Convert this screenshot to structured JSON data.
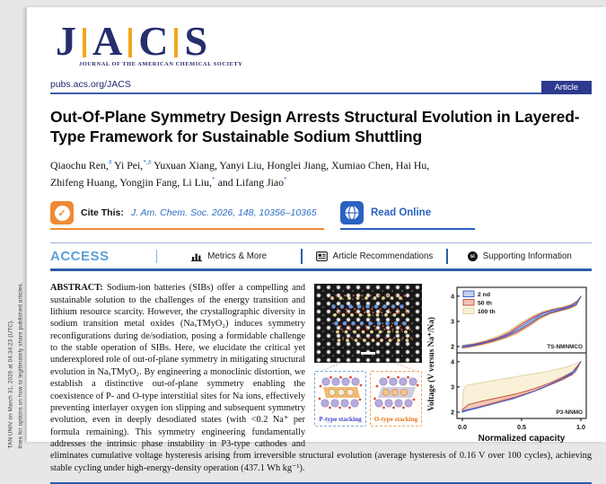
{
  "page": {
    "margin_note_line1": "TAN UNIV on March 31, 2026 at 04:34:23 (UTC).",
    "margin_note_line2": "lines for options on how to legitimately share published articles."
  },
  "header": {
    "logo_letters": [
      "J",
      "A",
      "C",
      "S"
    ],
    "logo_subtitle": "JOURNAL OF THE AMERICAN CHEMICAL SOCIETY",
    "site_url": "pubs.acs.org/JACS",
    "badge": "Article"
  },
  "article": {
    "title": "Out-Of-Plane Symmetry Design Arrests Structural Evolution in Layered-Type Framework for Sustainable Sodium Shuttling",
    "authors": [
      {
        "name": "Qiaochu Ren,",
        "mark": "#"
      },
      {
        "name": " Yi Pei,",
        "mark": "*,#"
      },
      {
        "name": " Yuxuan Xiang,",
        "mark": ""
      },
      {
        "name": " Yanyi Liu,",
        "mark": ""
      },
      {
        "name": " Honglei Jiang,",
        "mark": ""
      },
      {
        "name": " Xumiao Chen,",
        "mark": ""
      },
      {
        "name": " Hai Hu,",
        "mark": ""
      },
      {
        "name": " Zhifeng Huang,",
        "mark": ""
      },
      {
        "name": " Yongjin Fang,",
        "mark": ""
      },
      {
        "name": " Li Liu,",
        "mark": "*"
      },
      {
        "name": " and Lifang Jiao",
        "mark": "*"
      }
    ]
  },
  "cite_bar": {
    "cite_label": "Cite This:",
    "citation": "J. Am. Chem. Soc. 2026, 148, 10356–10365",
    "read_online_label": "Read Online"
  },
  "access_bar": {
    "access": "ACCESS",
    "metrics": "Metrics & More",
    "recommendations": "Article Recommendations",
    "supporting": "Supporting Information",
    "si_icon_text": "si"
  },
  "abstract": {
    "label": "ABSTRACT:",
    "column_text": "Sodium-ion batteries (SIBs) offer a compelling and sustainable solution to the challenges of the energy transition and lithium resource scarcity. However, the crystallographic diversity in sodium transition metal oxides (NaₓTMyO₂) induces symmetry reconfigurations during de/sodiation, posing a formidable challenge to the stable operation of SIBs. Here, we elucidate the critical yet underexplored role of out-of-plane symmetry in mitigating structural evolution in NaₓTMyO₂. By engineering a monoclinic distortion, we establish a distinctive out-of-plane symmetry enabling the coexistence of P- and O-type interstitial sites for Na ions, effectively preventing interlayer oxygen ion slipping and subsequent symmetry evolution, even in deeply desodiated states (with <0.2 Na⁺ per formula remaining). This symmetry engineering",
    "full_width_text": "fundamentally addresses the intrinsic phase instability in P3-type cathodes and eliminates cumulative voltage hysteresis arising from irreversible structural evolution (average hysteresis of 0.16 V over 100 cycles), achieving stable cycling under high-energy-density operation (437.1 Wh kg⁻¹)."
  },
  "figure": {
    "p_type_label": "P-type stacking",
    "o_type_label": "O-type stacking"
  },
  "chart_data": {
    "type": "line",
    "xlabel": "Normalized capacity",
    "ylabel": "Voltage (V versus Na⁺/Na)",
    "x_ticks": [
      "0.0",
      "0.5",
      "1.0"
    ],
    "y_ticks": [
      "2",
      "3",
      "4"
    ],
    "xlim": [
      0,
      1
    ],
    "panel_ylim": [
      1.75,
      4.35
    ],
    "legend_position": "top-left",
    "series_styles": [
      {
        "name": "2 nd",
        "stroke": "#4a62c8",
        "fill": "#c4d0ee"
      },
      {
        "name": "50 th",
        "stroke": "#c8523c",
        "fill": "#f0c2b6"
      },
      {
        "name": "100 th",
        "stroke": "#e2d2a2",
        "fill": "#f9f0d4"
      }
    ],
    "panels": [
      {
        "label": "TS-NMNMCO",
        "series": [
          {
            "name": "2 nd",
            "charge": [
              [
                0,
                2.02
              ],
              [
                0.1,
                2.08
              ],
              [
                0.2,
                2.18
              ],
              [
                0.3,
                2.32
              ],
              [
                0.4,
                2.52
              ],
              [
                0.5,
                2.82
              ],
              [
                0.6,
                3.12
              ],
              [
                0.68,
                3.32
              ],
              [
                0.76,
                3.43
              ],
              [
                0.85,
                3.52
              ],
              [
                0.92,
                3.62
              ],
              [
                0.97,
                3.78
              ],
              [
                1,
                4.0
              ]
            ],
            "discharge": [
              [
                1,
                4.0
              ],
              [
                0.96,
                3.68
              ],
              [
                0.9,
                3.55
              ],
              [
                0.82,
                3.45
              ],
              [
                0.74,
                3.35
              ],
              [
                0.65,
                3.18
              ],
              [
                0.56,
                2.9
              ],
              [
                0.46,
                2.62
              ],
              [
                0.36,
                2.4
              ],
              [
                0.26,
                2.25
              ],
              [
                0.16,
                2.12
              ],
              [
                0.07,
                2.03
              ],
              [
                0,
                1.97
              ]
            ]
          },
          {
            "name": "50 th",
            "charge": [
              [
                0,
                2.03
              ],
              [
                0.1,
                2.1
              ],
              [
                0.2,
                2.21
              ],
              [
                0.3,
                2.36
              ],
              [
                0.4,
                2.58
              ],
              [
                0.5,
                2.9
              ],
              [
                0.6,
                3.18
              ],
              [
                0.68,
                3.36
              ],
              [
                0.76,
                3.46
              ],
              [
                0.85,
                3.55
              ],
              [
                0.92,
                3.65
              ],
              [
                0.97,
                3.8
              ],
              [
                1,
                3.98
              ]
            ],
            "discharge": [
              [
                1,
                3.98
              ],
              [
                0.96,
                3.65
              ],
              [
                0.9,
                3.52
              ],
              [
                0.82,
                3.42
              ],
              [
                0.74,
                3.32
              ],
              [
                0.65,
                3.13
              ],
              [
                0.56,
                2.84
              ],
              [
                0.46,
                2.56
              ],
              [
                0.36,
                2.36
              ],
              [
                0.26,
                2.21
              ],
              [
                0.16,
                2.09
              ],
              [
                0.07,
                2.0
              ],
              [
                0,
                1.95
              ]
            ]
          },
          {
            "name": "100 th",
            "charge": [
              [
                0,
                2.05
              ],
              [
                0.1,
                2.13
              ],
              [
                0.2,
                2.25
              ],
              [
                0.3,
                2.42
              ],
              [
                0.4,
                2.65
              ],
              [
                0.5,
                2.97
              ],
              [
                0.6,
                3.23
              ],
              [
                0.68,
                3.4
              ],
              [
                0.76,
                3.49
              ],
              [
                0.85,
                3.58
              ],
              [
                0.92,
                3.68
              ],
              [
                0.97,
                3.82
              ],
              [
                1,
                3.96
              ]
            ],
            "discharge": [
              [
                1,
                3.96
              ],
              [
                0.96,
                3.62
              ],
              [
                0.9,
                3.5
              ],
              [
                0.82,
                3.4
              ],
              [
                0.74,
                3.29
              ],
              [
                0.65,
                3.08
              ],
              [
                0.56,
                2.78
              ],
              [
                0.46,
                2.5
              ],
              [
                0.36,
                2.32
              ],
              [
                0.26,
                2.17
              ],
              [
                0.16,
                2.06
              ],
              [
                0.07,
                1.98
              ],
              [
                0,
                1.93
              ]
            ]
          }
        ]
      },
      {
        "label": "P3-NNMO",
        "series": [
          {
            "name": "2 nd",
            "charge": [
              [
                0,
                2.05
              ],
              [
                0.1,
                2.15
              ],
              [
                0.2,
                2.25
              ],
              [
                0.3,
                2.38
              ],
              [
                0.4,
                2.5
              ],
              [
                0.5,
                2.65
              ],
              [
                0.6,
                2.82
              ],
              [
                0.7,
                3.02
              ],
              [
                0.78,
                3.2
              ],
              [
                0.85,
                3.35
              ],
              [
                0.92,
                3.55
              ],
              [
                0.97,
                3.75
              ],
              [
                1,
                4.0
              ]
            ],
            "discharge": [
              [
                1,
                4.0
              ],
              [
                0.95,
                3.6
              ],
              [
                0.9,
                3.45
              ],
              [
                0.82,
                3.28
              ],
              [
                0.72,
                3.05
              ],
              [
                0.62,
                2.85
              ],
              [
                0.52,
                2.68
              ],
              [
                0.42,
                2.52
              ],
              [
                0.32,
                2.4
              ],
              [
                0.22,
                2.28
              ],
              [
                0.12,
                2.15
              ],
              [
                0.04,
                2.06
              ],
              [
                0,
                2.0
              ]
            ]
          },
          {
            "name": "50 th",
            "charge": [
              [
                0,
                2.1
              ],
              [
                0.05,
                2.3
              ],
              [
                0.15,
                2.42
              ],
              [
                0.25,
                2.52
              ],
              [
                0.35,
                2.62
              ],
              [
                0.45,
                2.72
              ],
              [
                0.55,
                2.85
              ],
              [
                0.65,
                3.0
              ],
              [
                0.75,
                3.18
              ],
              [
                0.85,
                3.4
              ],
              [
                0.93,
                3.6
              ],
              [
                1,
                4.0
              ]
            ],
            "discharge": [
              [
                1,
                4.0
              ],
              [
                0.93,
                3.5
              ],
              [
                0.85,
                3.3
              ],
              [
                0.75,
                3.1
              ],
              [
                0.65,
                2.9
              ],
              [
                0.55,
                2.75
              ],
              [
                0.45,
                2.6
              ],
              [
                0.35,
                2.48
              ],
              [
                0.25,
                2.35
              ],
              [
                0.15,
                2.22
              ],
              [
                0.05,
                2.1
              ],
              [
                0,
                2.02
              ]
            ]
          },
          {
            "name": "100 th",
            "charge": [
              [
                0,
                2.35
              ],
              [
                0.01,
                2.9
              ],
              [
                0.03,
                3.05
              ],
              [
                0.1,
                3.12
              ],
              [
                0.2,
                3.2
              ],
              [
                0.3,
                3.28
              ],
              [
                0.4,
                3.36
              ],
              [
                0.5,
                3.44
              ],
              [
                0.6,
                3.52
              ],
              [
                0.7,
                3.6
              ],
              [
                0.8,
                3.7
              ],
              [
                0.9,
                3.82
              ],
              [
                1,
                4.0
              ]
            ],
            "discharge": [
              [
                1,
                4.0
              ],
              [
                0.96,
                3.6
              ],
              [
                0.9,
                3.42
              ],
              [
                0.8,
                3.22
              ],
              [
                0.7,
                3.02
              ],
              [
                0.6,
                2.85
              ],
              [
                0.5,
                2.7
              ],
              [
                0.4,
                2.55
              ],
              [
                0.3,
                2.42
              ],
              [
                0.2,
                2.3
              ],
              [
                0.1,
                2.18
              ],
              [
                0.03,
                2.08
              ],
              [
                0,
                2.05
              ]
            ]
          }
        ]
      }
    ]
  }
}
